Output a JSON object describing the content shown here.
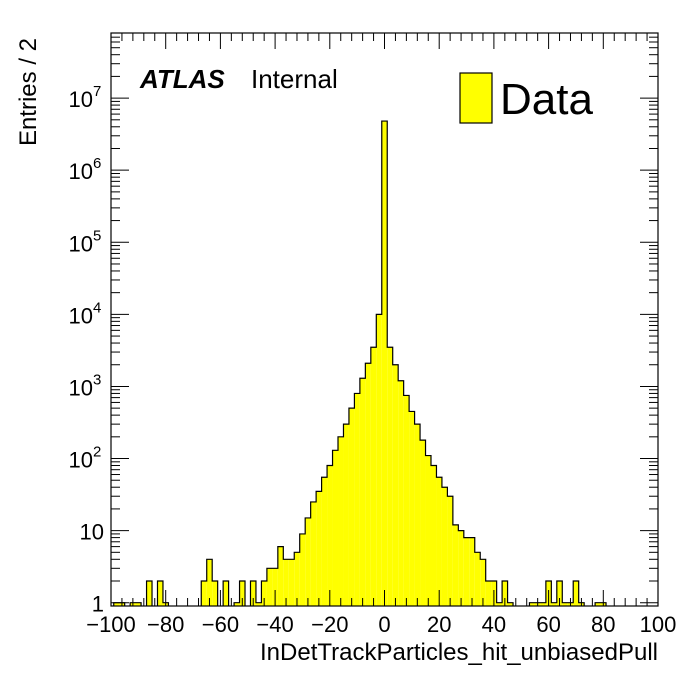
{
  "chart_data": {
    "type": "histogram",
    "xlabel": "InDetTrackParticles_hit_unbiasedPull",
    "ylabel": "Entries / 2",
    "xlim": [
      -100,
      100
    ],
    "ylim": [
      0.9,
      80000000
    ],
    "log_y": true,
    "bin_width": 2,
    "fill_color": "#ffff00",
    "legend": {
      "entries": [
        "Data"
      ],
      "placement": "top-right"
    },
    "annotations": {
      "brand": "ATLAS",
      "status": "Internal"
    },
    "x_ticks": [
      {
        "value": -100,
        "label": "−100"
      },
      {
        "value": -80,
        "label": "−80"
      },
      {
        "value": -60,
        "label": "−60"
      },
      {
        "value": -40,
        "label": "−40"
      },
      {
        "value": -20,
        "label": "−20"
      },
      {
        "value": 0,
        "label": "0"
      },
      {
        "value": 20,
        "label": "20"
      },
      {
        "value": 40,
        "label": "40"
      },
      {
        "value": 60,
        "label": "60"
      },
      {
        "value": 80,
        "label": "80"
      },
      {
        "value": 100,
        "label": "100"
      }
    ],
    "y_ticks": [
      {
        "value": 1,
        "base": "1",
        "exp": ""
      },
      {
        "value": 10,
        "base": "10",
        "exp": ""
      },
      {
        "value": 100,
        "base": "10",
        "exp": "2"
      },
      {
        "value": 1000,
        "base": "10",
        "exp": "3"
      },
      {
        "value": 10000,
        "base": "10",
        "exp": "4"
      },
      {
        "value": 100000,
        "base": "10",
        "exp": "5"
      },
      {
        "value": 1000000,
        "base": "10",
        "exp": "6"
      },
      {
        "value": 10000000,
        "base": "10",
        "exp": "7"
      }
    ],
    "bins": [
      {
        "x": -98,
        "y": 1
      },
      {
        "x": -96,
        "y": 1
      },
      {
        "x": -92,
        "y": 1
      },
      {
        "x": -90,
        "y": 1
      },
      {
        "x": -86,
        "y": 2
      },
      {
        "x": -82,
        "y": 2
      },
      {
        "x": -80,
        "y": 1
      },
      {
        "x": -66,
        "y": 2
      },
      {
        "x": -64,
        "y": 4
      },
      {
        "x": -62,
        "y": 2
      },
      {
        "x": -58,
        "y": 2
      },
      {
        "x": -54,
        "y": 1
      },
      {
        "x": -52,
        "y": 2
      },
      {
        "x": -48,
        "y": 2
      },
      {
        "x": -46,
        "y": 1
      },
      {
        "x": -44,
        "y": 2
      },
      {
        "x": -42,
        "y": 3
      },
      {
        "x": -40,
        "y": 3
      },
      {
        "x": -38,
        "y": 6
      },
      {
        "x": -36,
        "y": 4
      },
      {
        "x": -34,
        "y": 4
      },
      {
        "x": -32,
        "y": 5
      },
      {
        "x": -30,
        "y": 9
      },
      {
        "x": -28,
        "y": 15
      },
      {
        "x": -26,
        "y": 25
      },
      {
        "x": -24,
        "y": 35
      },
      {
        "x": -22,
        "y": 55
      },
      {
        "x": -20,
        "y": 80
      },
      {
        "x": -18,
        "y": 130
      },
      {
        "x": -16,
        "y": 200
      },
      {
        "x": -14,
        "y": 300
      },
      {
        "x": -12,
        "y": 500
      },
      {
        "x": -10,
        "y": 800
      },
      {
        "x": -8,
        "y": 1300
      },
      {
        "x": -6,
        "y": 2100
      },
      {
        "x": -4,
        "y": 3500
      },
      {
        "x": -2,
        "y": 10000
      },
      {
        "x": 0,
        "y": 4800000
      },
      {
        "x": 2,
        "y": 3500
      },
      {
        "x": 4,
        "y": 2000
      },
      {
        "x": 6,
        "y": 1200
      },
      {
        "x": 8,
        "y": 750
      },
      {
        "x": 10,
        "y": 450
      },
      {
        "x": 12,
        "y": 300
      },
      {
        "x": 14,
        "y": 180
      },
      {
        "x": 16,
        "y": 110
      },
      {
        "x": 18,
        "y": 80
      },
      {
        "x": 20,
        "y": 55
      },
      {
        "x": 22,
        "y": 40
      },
      {
        "x": 24,
        "y": 30
      },
      {
        "x": 26,
        "y": 12
      },
      {
        "x": 28,
        "y": 10
      },
      {
        "x": 30,
        "y": 8
      },
      {
        "x": 32,
        "y": 8
      },
      {
        "x": 34,
        "y": 5
      },
      {
        "x": 36,
        "y": 4
      },
      {
        "x": 38,
        "y": 2
      },
      {
        "x": 40,
        "y": 2
      },
      {
        "x": 42,
        "y": 1
      },
      {
        "x": 44,
        "y": 2
      },
      {
        "x": 46,
        "y": 1
      },
      {
        "x": 54,
        "y": 1
      },
      {
        "x": 56,
        "y": 1
      },
      {
        "x": 58,
        "y": 1
      },
      {
        "x": 60,
        "y": 2
      },
      {
        "x": 62,
        "y": 1
      },
      {
        "x": 64,
        "y": 2
      },
      {
        "x": 66,
        "y": 1
      },
      {
        "x": 68,
        "y": 1
      },
      {
        "x": 70,
        "y": 2
      },
      {
        "x": 72,
        "y": 1
      },
      {
        "x": 78,
        "y": 1
      },
      {
        "x": 80,
        "y": 1
      }
    ]
  }
}
